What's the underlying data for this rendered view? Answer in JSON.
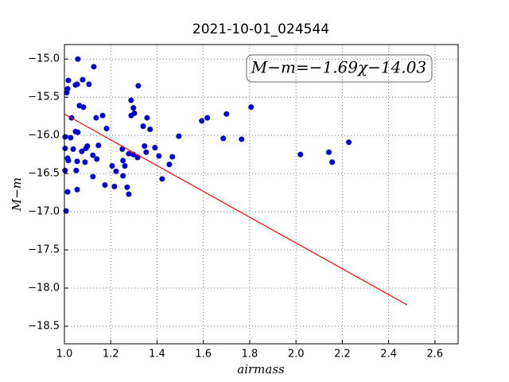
{
  "chart_data": {
    "type": "scatter",
    "title": "2021-10-01_024544",
    "xlabel": "airmass",
    "ylabel": "M−m",
    "annotation": "M−m=−1.69χ−14.03",
    "xlim": [
      1.0,
      2.7
    ],
    "ylim": [
      -18.73,
      -14.81
    ],
    "xticks": [
      {
        "value": 1.0,
        "label": "1.0"
      },
      1.2,
      1.4,
      1.6,
      1.8,
      {
        "value": 2.0,
        "label": "2.0"
      },
      2.2,
      2.4,
      2.6
    ],
    "yticks": [
      {
        "value": -15.0,
        "label": "−15.0"
      },
      {
        "value": -15.5,
        "label": "−15.5"
      },
      {
        "value": -16.0,
        "label": "−16.0"
      },
      {
        "value": -16.5,
        "label": "−16.5"
      },
      {
        "value": -17.0,
        "label": "−17.0"
      },
      {
        "value": -17.5,
        "label": "−17.5"
      },
      {
        "value": -18.0,
        "label": "−18.0"
      },
      {
        "value": -18.5,
        "label": "−18.5"
      }
    ],
    "grid": true,
    "series": [
      {
        "type": "scatter",
        "color": "#0000cc",
        "x": [
          1.058,
          1.127,
          1.017,
          1.014,
          1.01,
          1.048,
          1.055,
          1.079,
          1.106,
          1.319,
          1.065,
          1.082,
          1.288,
          1.298,
          1.302,
          1.288,
          1.137,
          1.165,
          1.031,
          1.357,
          1.34,
          1.37,
          1.182,
          1.048,
          1.058,
          1.003,
          1.027,
          1.494,
          1.806,
          1.7,
          1.617,
          1.593,
          1.686,
          1.765,
          1.147,
          1.099,
          1.093,
          1.075,
          1.003,
          1.038,
          1.346,
          1.353,
          1.391,
          1.25,
          1.408,
          1.278,
          1.298,
          1.316,
          2.019,
          2.142,
          2.156,
          2.228,
          1.123,
          1.14,
          1.014,
          1.017,
          1.055,
          1.089,
          1.466,
          1.453,
          1.253,
          1.261,
          1.206,
          1.051,
          1.223,
          1.003,
          1.123,
          1.253,
          1.422,
          1.175,
          1.216,
          1.271,
          1.055,
          1.014,
          1.278,
          1.007
        ],
        "values": [
          -15.0,
          -15.1,
          -15.28,
          -15.39,
          -15.44,
          -15.34,
          -15.33,
          -15.27,
          -15.33,
          -15.35,
          -15.61,
          -15.63,
          -15.54,
          -15.64,
          -15.71,
          -15.74,
          -15.77,
          -15.74,
          -15.77,
          -15.77,
          -15.88,
          -15.92,
          -15.91,
          -15.95,
          -15.96,
          -16.02,
          -16.03,
          -16.01,
          -15.63,
          -15.72,
          -15.77,
          -15.81,
          -16.04,
          -16.05,
          -16.13,
          -16.14,
          -16.17,
          -16.21,
          -16.17,
          -16.18,
          -16.14,
          -16.22,
          -16.16,
          -16.18,
          -16.27,
          -16.24,
          -16.25,
          -16.29,
          -16.25,
          -16.22,
          -16.35,
          -16.09,
          -16.26,
          -16.31,
          -16.3,
          -16.33,
          -16.34,
          -16.35,
          -16.28,
          -16.38,
          -16.33,
          -16.4,
          -16.4,
          -16.46,
          -16.47,
          -16.46,
          -16.54,
          -16.53,
          -16.57,
          -16.65,
          -16.67,
          -16.68,
          -16.71,
          -16.74,
          -16.77,
          -16.99
        ]
      },
      {
        "type": "line",
        "color": "#ff0000",
        "x": [
          1.0,
          2.48
        ],
        "values": [
          -15.72,
          -18.22
        ]
      }
    ]
  }
}
